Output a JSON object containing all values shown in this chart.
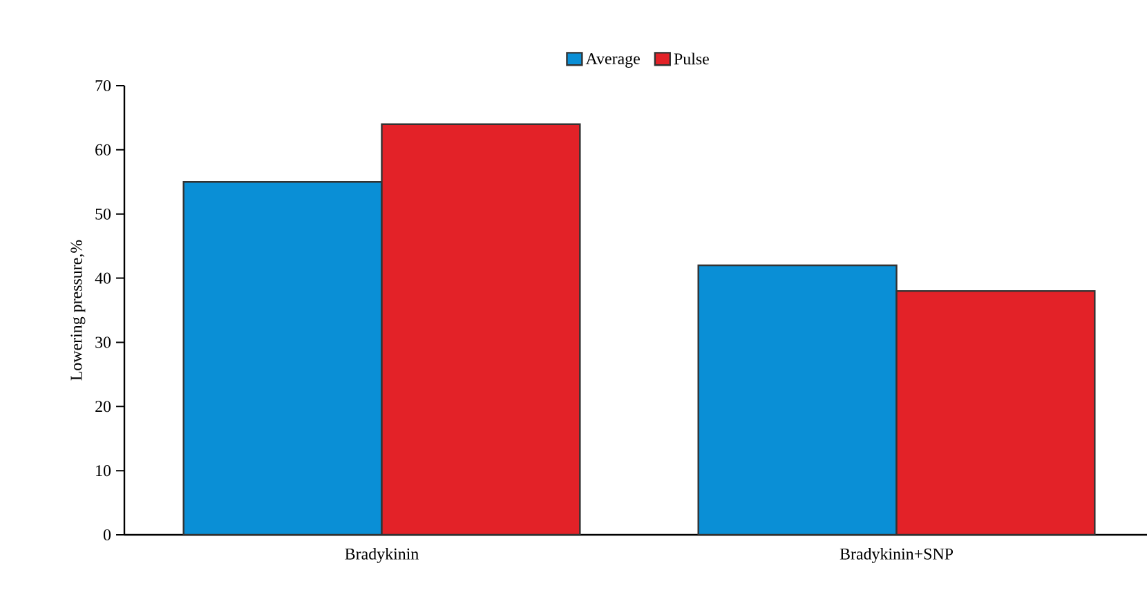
{
  "chart_data": {
    "type": "bar",
    "ylabel": "Lowering pressure,%",
    "categories": [
      "Bradykinin",
      "Bradykinin+SNP"
    ],
    "series": [
      {
        "name": "Average",
        "color": "#0a8fd6",
        "values": [
          55,
          42
        ]
      },
      {
        "name": "Pulse",
        "color": "#e32228",
        "values": [
          64,
          38
        ]
      }
    ],
    "ylim": [
      0,
      70
    ],
    "yticks": [
      0,
      10,
      20,
      30,
      40,
      50,
      60,
      70
    ],
    "grid": false,
    "legend": "top"
  }
}
